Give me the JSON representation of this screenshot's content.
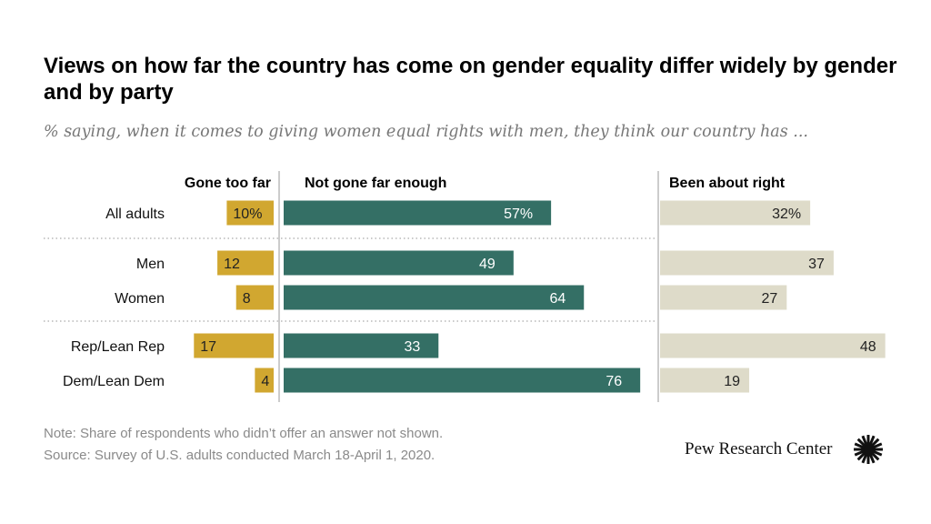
{
  "title": "Views on how far the country has come on gender equality differ widely by gender and by party",
  "subtitle": "% saying, when it comes to giving women equal rights with men, they think our country has ...",
  "note": "Note: Share of respondents who didn’t offer an answer not shown.",
  "source": "Source: Survey of U.S. adults conducted March 18-April 1, 2020.",
  "brand": "Pew Research Center",
  "chart_data": {
    "type": "bar",
    "orientation": "horizontal",
    "categories": [
      "All adults",
      "Men",
      "Women",
      "Rep/Lean Rep",
      "Dem/Lean Dem"
    ],
    "groups": [
      [
        "All adults"
      ],
      [
        "Men",
        "Women"
      ],
      [
        "Rep/Lean Rep",
        "Dem/Lean Dem"
      ]
    ],
    "series": [
      {
        "name": "Gone too far",
        "values": [
          10,
          12,
          8,
          17,
          4
        ],
        "labels": [
          "10%",
          "12",
          "8",
          "17",
          "4"
        ],
        "color": "#D1A730"
      },
      {
        "name": "Not gone far enough",
        "values": [
          57,
          49,
          64,
          33,
          76
        ],
        "labels": [
          "57%",
          "49",
          "64",
          "33",
          "76"
        ],
        "color": "#346F65"
      },
      {
        "name": "Been about right",
        "values": [
          32,
          37,
          27,
          48,
          19
        ],
        "labels": [
          "32%",
          "37",
          "27",
          "48",
          "19"
        ],
        "color": "#DEDBC9"
      }
    ],
    "unit": "%"
  }
}
